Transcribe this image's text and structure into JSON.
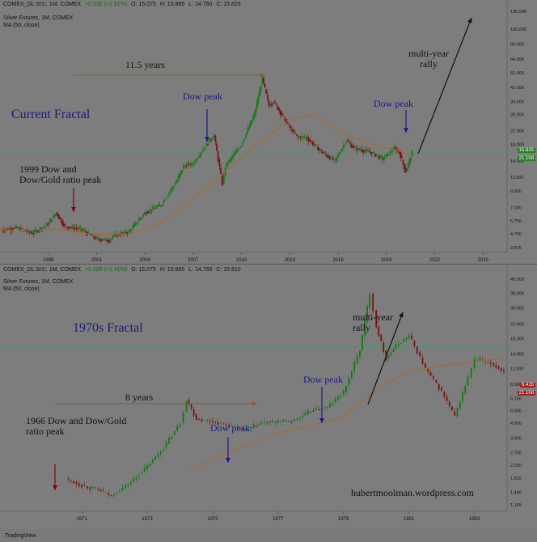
{
  "colors": {
    "up": "#0f7a0f",
    "down": "#7a1010",
    "ma": "#b5651d",
    "hline": "#3d9a6a",
    "arrow": "#8b5a2b",
    "blue": "#1a1a8c",
    "red": "#8b0000",
    "black": "#111111"
  },
  "top": {
    "symbol": "COMEX_DL:SI1!, 1M, COMEX",
    "change": "+0.235 (+1.51%)",
    "o": "O: 15.075",
    "h": "H: 15.885",
    "l": "L: 14.760",
    "c": "C: 15.825",
    "last": "15.825",
    "name": "Silver Futures, 1M, COMEX",
    "ma_label": "MA (50, close)",
    "title": "Current Fractal",
    "span_label": "11.5 years",
    "peak_label": "Dow peak",
    "peak_label2": "Dow peak",
    "origin_label": "1999 Dow and Dow/Gold ratio peak",
    "rally_label": "multi-year rally",
    "price_tag1": "15.825",
    "price_tag2": "21.10d"
  },
  "bottom": {
    "symbol": "COMEX_DL:SI1!, 1M, COMEX",
    "change": "+0.220 (+1.41%)",
    "o": "O: 15.075",
    "h": "H: 15.885",
    "l": "L: 14.760",
    "c": "C: 15.810",
    "last": "15.810",
    "name": "Silver Futures, 1M, COMEX",
    "ma_label": "MA (50, close)",
    "title": "1970s Fractal",
    "span_label": "8 years",
    "peak_label": "Dow peak",
    "peak_label2": "Dow peak",
    "origin_label": "1966 Dow and Dow/Gold ratio peak",
    "rally_label": "multi-year rally",
    "website": "hubertmoolman.wordpress.com",
    "price_tag1": "6.415",
    "price_tag2": "21.10d"
  },
  "footer": {
    "brand": "TradingView"
  },
  "chart_data": [
    {
      "type": "line",
      "title": "Current Fractal",
      "scale": "log",
      "ylim": [
        3.6,
        130
      ],
      "y_ticks": [
        130,
        100,
        80,
        64,
        52,
        42,
        34,
        28,
        22,
        18,
        14,
        11,
        9,
        7,
        5.75,
        4.75,
        3.875
      ],
      "y_tick_labels": [
        "130.000",
        "100.000",
        "80.000",
        "64.000",
        "52.000",
        "42.000",
        "34.000",
        "28.000",
        "22.000",
        "18.000",
        "14.000",
        "11.000",
        "9.000",
        "7.000",
        "5.750",
        "4.750",
        "3.875"
      ],
      "x_ticks": [
        "1998",
        "2001",
        "2004",
        "2007",
        "2010",
        "2013",
        "2016",
        "2019",
        "2022",
        "2025"
      ],
      "xlim": [
        1995,
        2026.5
      ],
      "grid": false,
      "series": [
        {
          "x": [
            1995,
            1996,
            1997,
            1998,
            1998.5,
            1999,
            2000,
            2001,
            2001.8,
            2002,
            2003,
            2004,
            2005,
            2006,
            2006.4,
            2007,
            2008,
            2008.3,
            2008.8,
            2009,
            2010,
            2010.8,
            2011.3,
            2011.7,
            2012,
            2012.5,
            2013,
            2013.5,
            2014,
            2015,
            2015.8,
            2016.5,
            2017,
            2018,
            2018.8,
            2019.5,
            2019.8,
            2020.2,
            2020.6
          ],
          "values": [
            5,
            5.2,
            4.8,
            5.5,
            6.5,
            5.3,
            5.1,
            4.4,
            4.3,
            4.6,
            4.9,
            6.5,
            7.3,
            10.5,
            13,
            13.5,
            19,
            20.5,
            10,
            13,
            18,
            28,
            48,
            32,
            34,
            28,
            23,
            20,
            20,
            16,
            14,
            19,
            17,
            16,
            14.5,
            17,
            16,
            12,
            15.8
          ]
        },
        {
          "name": "MA (50, close)",
          "x": [
            1995,
            1998,
            2001,
            2003,
            2005,
            2007,
            2009,
            2011,
            2013,
            2014.5,
            2016,
            2018,
            2020.6
          ],
          "values": [
            5,
            5.1,
            4.7,
            4.7,
            5.6,
            8,
            12,
            18,
            26,
            28,
            22,
            18,
            15.5
          ]
        }
      ],
      "annotations": [
        "11.5 years",
        "Dow peak",
        "Dow peak",
        "1999 Dow and Dow/Gold ratio peak",
        "multi-year rally"
      ]
    },
    {
      "type": "line",
      "title": "1970s Fractal",
      "scale": "log",
      "ylim": [
        1.05,
        50
      ],
      "y_ticks": [
        48,
        38,
        30,
        23,
        18,
        14,
        11,
        8.5,
        6.75,
        5.5,
        4.5,
        3.5,
        2.75,
        2.25,
        1.815,
        1.44,
        1.165
      ],
      "y_tick_labels": [
        "48.000",
        "38.000",
        "30.000",
        "23.000",
        "18.000",
        "14.000",
        "11.000",
        "8.500",
        "6.750",
        "5.500",
        "4.500",
        "3.500",
        "2.750",
        "2.250",
        "1.815",
        "1.440",
        "1.165"
      ],
      "x_ticks": [
        "1971",
        "1973",
        "1975",
        "1977",
        "1979",
        "1981",
        "1983"
      ],
      "xlim": [
        1968.5,
        1984
      ],
      "grid": false,
      "series": [
        {
          "x": [
            1970.5,
            1971,
            1971.5,
            1971.9,
            1972.5,
            1973,
            1973.5,
            1974,
            1974.2,
            1974.5,
            1975,
            1975.5,
            1976,
            1976.5,
            1977,
            1977.5,
            1978,
            1978.5,
            1979,
            1979.5,
            1979.8,
            1980,
            1980.3,
            1980.6,
            1981,
            1981.5,
            1982,
            1982.4,
            1982.8,
            1983,
            1983.5,
            1983.9
          ],
          "values": [
            1.8,
            1.6,
            1.5,
            1.35,
            1.7,
            2.2,
            3,
            4.5,
            6.6,
            4.8,
            4.6,
            4.3,
            4,
            4.5,
            4.6,
            4.7,
            5.5,
            5.8,
            7.5,
            15,
            38,
            22,
            13,
            16,
            19,
            11,
            7.5,
            5,
            9.5,
            13,
            12,
            10.5
          ]
        },
        {
          "name": "MA (50, close)",
          "x": [
            1974.2,
            1975,
            1976,
            1977,
            1978,
            1979,
            1980,
            1981,
            1982,
            1983,
            1983.9
          ],
          "values": [
            2,
            2.5,
            3.1,
            3.8,
            4.3,
            5,
            7.8,
            10.5,
            11.5,
            12.3,
            13
          ]
        }
      ],
      "annotations": [
        "8 years",
        "Dow peak",
        "Dow peak",
        "1966 Dow and Dow/Gold ratio peak",
        "multi-year rally",
        "hubertmoolman.wordpress.com"
      ]
    }
  ]
}
